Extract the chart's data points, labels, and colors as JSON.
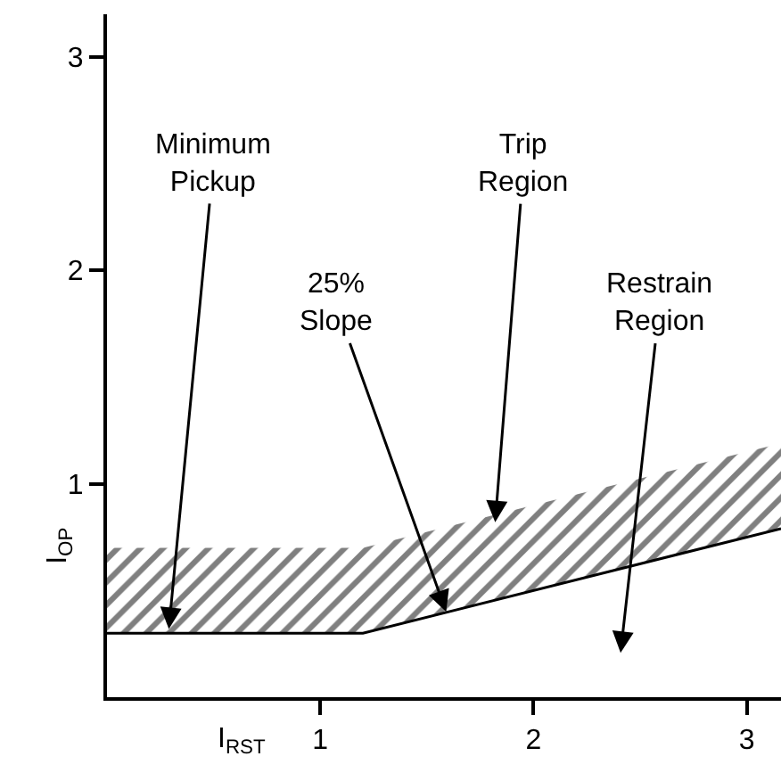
{
  "chart_data": {
    "type": "line",
    "xlabel": "I$_{RST}$",
    "ylabel": "I$_{OP}$",
    "x": [
      0,
      1.2,
      3.16
    ],
    "series": [
      {
        "color": "#000000",
        "values": [
          0.3,
          0.3,
          0.79
        ],
        "lower": [
          0.3,
          0.3,
          0.79
        ],
        "upper": [
          0.7,
          0.7,
          1.19
        ]
      }
    ],
    "xlim": [
      0,
      3.16
    ],
    "ylim": [
      0,
      3.2
    ],
    "xticks": [
      1,
      2,
      3
    ],
    "yticks": [
      1,
      2,
      3
    ],
    "grid": false,
    "marker": "none",
    "line_style": "solid",
    "annotations": [
      {
        "text": "Minimum\nPickup",
        "x": 0.29,
        "y": 0.32
      },
      {
        "text": "25%\nSlope",
        "x": 1.59,
        "y": 0.4
      },
      {
        "text": "Trip\nRegion",
        "x": 1.82,
        "y": 0.82
      },
      "Restrain\nRegion"
    ]
  }
}
